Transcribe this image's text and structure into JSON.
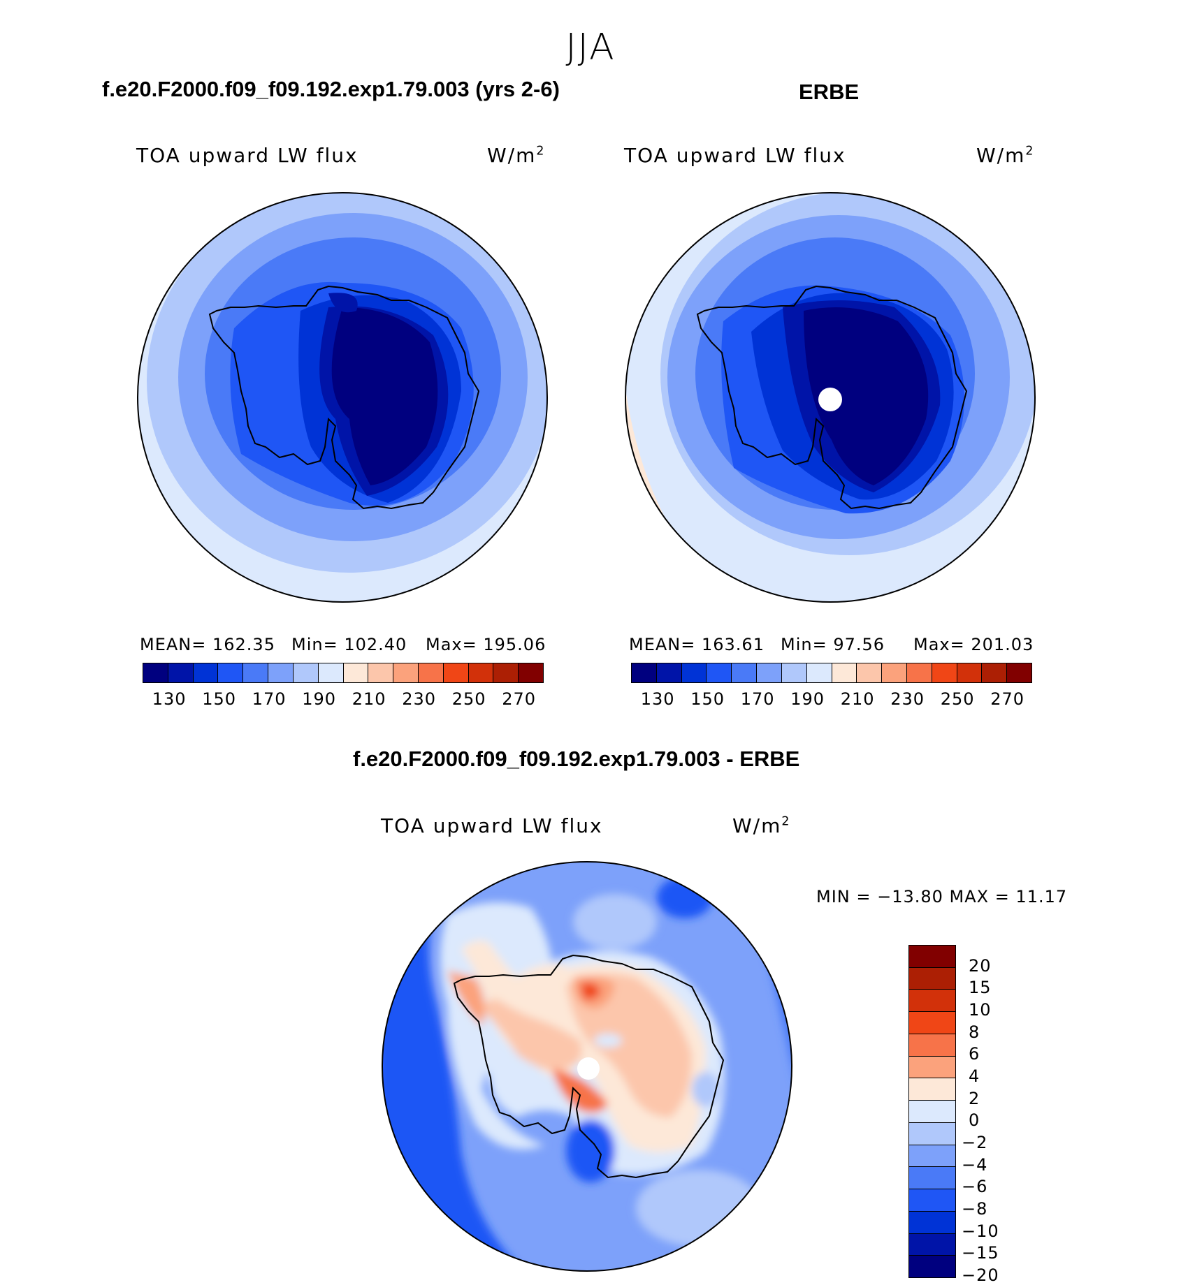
{
  "season": "JJA",
  "panels": {
    "model": {
      "title": "f.e20.F2000.f09_f09.192.exp1.79.003 (yrs 2-6)",
      "variable": "TOA upward LW flux",
      "units_base": "W/m",
      "units_exp": "2",
      "mean": "MEAN= 162.35",
      "min": "Min= 102.40",
      "max": "Max= 195.06"
    },
    "obs": {
      "title": "ERBE",
      "variable": "TOA upward LW flux",
      "units_base": "W/m",
      "units_exp": "2",
      "mean": "MEAN= 163.61",
      "min": "Min=  97.56",
      "max": "Max= 201.03"
    },
    "diff": {
      "title": "f.e20.F2000.f09_f09.192.exp1.79.003 - ERBE",
      "variable": "TOA upward LW flux",
      "units_base": "W/m",
      "units_exp": "2",
      "minmax": "MIN = −13.80 MAX =   11.17"
    }
  },
  "colorbar_abs": {
    "colors": [
      "#00007f",
      "#0014a8",
      "#0033d6",
      "#1f56f5",
      "#4a7af7",
      "#7da1fa",
      "#b0c8fb",
      "#dce9fd",
      "#fde8d8",
      "#fcc6ab",
      "#fba27c",
      "#f77349",
      "#f04616",
      "#d2310a",
      "#ac1f04",
      "#810000"
    ],
    "labels": [
      "130",
      "150",
      "170",
      "190",
      "210",
      "230",
      "250",
      "270"
    ]
  },
  "colorbar_diff": {
    "colors": [
      "#810000",
      "#ac1f04",
      "#d2310a",
      "#f04616",
      "#f77349",
      "#fba27c",
      "#fde8d8",
      "#dce9fd",
      "#b0c8fb",
      "#7da1fa",
      "#4a7af7",
      "#1f56f5",
      "#0033d6",
      "#0014a8",
      "#00007f"
    ],
    "labels": [
      "20",
      "15",
      "10",
      "8",
      "6",
      "4",
      "2",
      "0",
      "−2",
      "−4",
      "−6",
      "−8",
      "−10",
      "−15",
      "−20"
    ]
  }
}
